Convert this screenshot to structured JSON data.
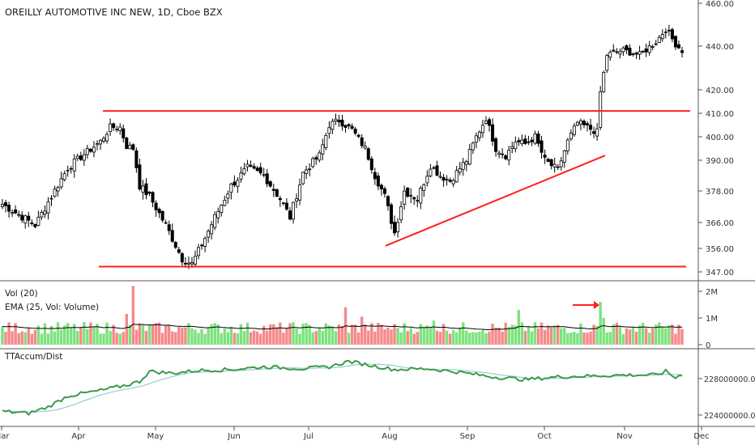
{
  "header": {
    "title": "OREILLY AUTOMOTIVE INC NEW, 1D, Cboe BZX"
  },
  "colors": {
    "up": "#ffffff",
    "down": "#000000",
    "wick": "#000000",
    "vol_up": "#7ee27e",
    "vol_down": "#f58a8a",
    "trendline": "#ff1f1f",
    "ema": "#000000",
    "ttaccum": "#3e9a48",
    "ttaccum_ma": "#8fd0d0",
    "axis_text": "#333333",
    "grid": "#9a9a9a"
  },
  "chart_data": [
    {
      "type": "candlestick",
      "title": "OREILLY AUTOMOTIVE INC NEW, 1D, Cboe BZX",
      "y_axis": {
        "ticks": [
          "460.00",
          "440.00",
          "420.00",
          "410.00",
          "400.00",
          "390.00",
          "378.00",
          "366.00",
          "356.00",
          "347.00"
        ]
      },
      "y_values": [
        460,
        440,
        420,
        410,
        400,
        390,
        378,
        366,
        356,
        347
      ],
      "x_axis": {
        "ticks": [
          "Mar",
          "Apr",
          "May",
          "Jun",
          "Jul",
          "Aug",
          "Sep",
          "Oct",
          "Nov",
          "Dec"
        ]
      },
      "trendlines": [
        {
          "label": "resistance",
          "from": 411,
          "to": 411
        },
        {
          "label": "support",
          "from": 349,
          "to": 349
        },
        {
          "label": "ascending",
          "from": 357,
          "to": 392
        }
      ]
    },
    {
      "type": "bar",
      "legend": [
        "Vol (20)",
        "EMA (25, Vol: Volume)"
      ],
      "y_axis": {
        "ticks": [
          "2M",
          "1M",
          "0"
        ]
      },
      "y_values": [
        2000000,
        1000000,
        0
      ],
      "annotation": "red arrow pointing at the large volume bar"
    },
    {
      "type": "line",
      "legend": [
        "TTAccum/Dist"
      ],
      "y_axis": {
        "ticks": [
          "228000000.00",
          "224000000.00"
        ]
      },
      "y_values": [
        228000000,
        224000000
      ]
    }
  ]
}
